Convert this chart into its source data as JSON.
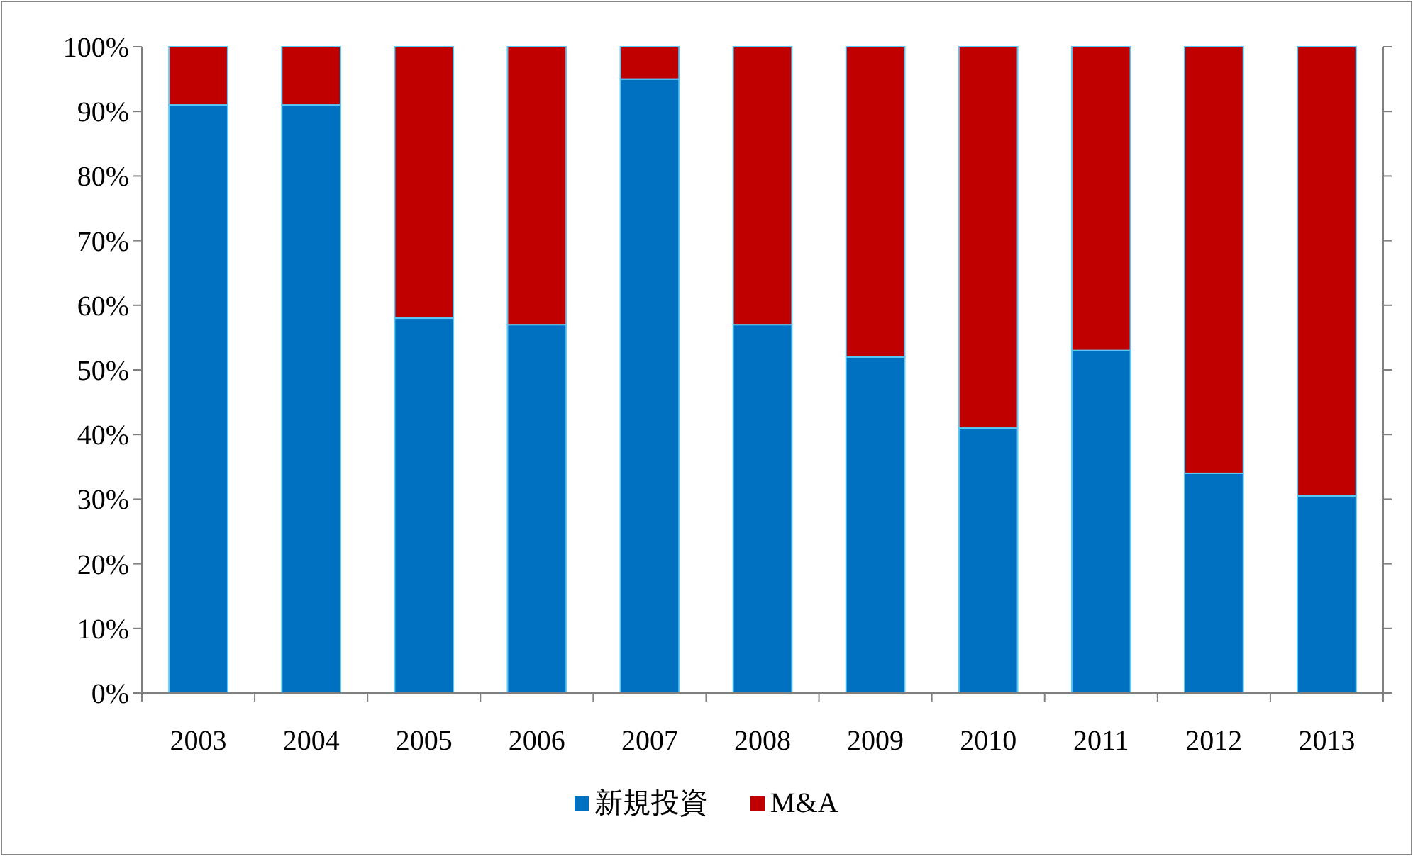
{
  "chart_data": {
    "type": "bar",
    "stacked": true,
    "categories": [
      "2003",
      "2004",
      "2005",
      "2006",
      "2007",
      "2008",
      "2009",
      "2010",
      "2011",
      "2012",
      "2013"
    ],
    "series": [
      {
        "name": "新規投資",
        "color": "#0070c0",
        "values": [
          91,
          91,
          58,
          57,
          95,
          57,
          52,
          41,
          53,
          34,
          30.5
        ]
      },
      {
        "name": "M&A",
        "color": "#c00000",
        "values": [
          9,
          9,
          42,
          43,
          5,
          43,
          48,
          59,
          47,
          66,
          69.5
        ]
      }
    ],
    "ylim": [
      0,
      100
    ],
    "yticks": [
      {
        "value": 0,
        "label": "0%"
      },
      {
        "value": 10,
        "label": "10%"
      },
      {
        "value": 20,
        "label": "20%"
      },
      {
        "value": 30,
        "label": "30%"
      },
      {
        "value": 40,
        "label": "40%"
      },
      {
        "value": 50,
        "label": "50%"
      },
      {
        "value": 60,
        "label": "60%"
      },
      {
        "value": 70,
        "label": "70%"
      },
      {
        "value": 80,
        "label": "80%"
      },
      {
        "value": 90,
        "label": "90%"
      },
      {
        "value": 100,
        "label": "100%"
      }
    ],
    "grid": false,
    "legend": "bottom"
  }
}
